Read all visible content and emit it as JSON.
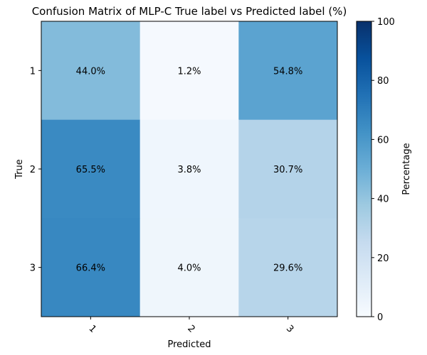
{
  "chart_data": {
    "type": "heatmap",
    "title": "Confusion Matrix of MLP-C True label vs Predicted label (%)",
    "xlabel": "Predicted",
    "ylabel": "True",
    "x_categories": [
      "1",
      "2",
      "3"
    ],
    "y_categories": [
      "1",
      "2",
      "3"
    ],
    "values": [
      [
        44.0,
        1.2,
        54.8
      ],
      [
        65.5,
        3.8,
        30.7
      ],
      [
        66.4,
        4.0,
        29.6
      ]
    ],
    "cell_labels": [
      [
        "44.0%",
        "1.2%",
        "54.8%"
      ],
      [
        "65.5%",
        "3.8%",
        "30.7%"
      ],
      [
        "66.4%",
        "4.0%",
        "29.6%"
      ]
    ],
    "colormap": "Blues",
    "colorbar": {
      "label": "Percentage",
      "range": [
        0,
        100
      ],
      "ticks": [
        "0",
        "20",
        "40",
        "60",
        "80",
        "100"
      ]
    },
    "grid": false
  }
}
